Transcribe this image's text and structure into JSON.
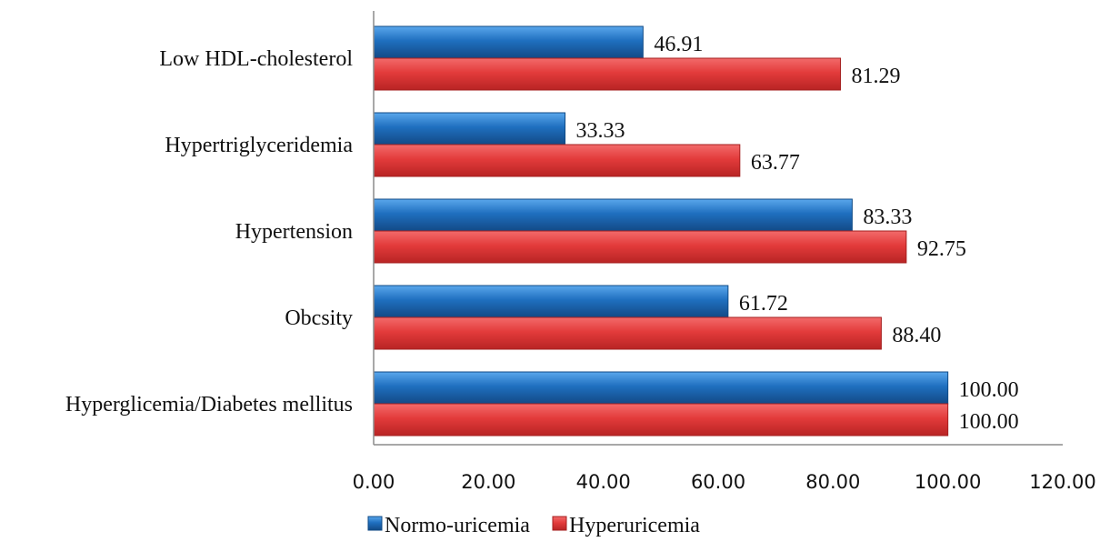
{
  "chart_data": {
    "type": "bar",
    "orientation": "horizontal",
    "categories": [
      "Low HDL-cholesterol",
      "Hypertriglyceridemia",
      "Hypertension",
      "Obcsity",
      "Hyperglicemia/Diabetes mellitus"
    ],
    "series": [
      {
        "name": "Normo-uricemia",
        "color": "#1f6fbf",
        "values": [
          46.91,
          33.33,
          83.33,
          61.72,
          100.0
        ],
        "labels": [
          "46.91",
          "33.33",
          "83.33",
          "61.72",
          "100.00"
        ]
      },
      {
        "name": "Hyperuricemia",
        "color": "#e33b3b",
        "values": [
          81.29,
          63.77,
          92.75,
          88.4,
          100.0
        ],
        "labels": [
          "81.29",
          "63.77",
          "92.75",
          "88.40",
          "100.00"
        ]
      }
    ],
    "xlim": [
      0,
      120
    ],
    "xticks": [
      "0.00",
      "20.00",
      "40.00",
      "60.00",
      "80.00",
      "100.00",
      "120.00"
    ],
    "grid": false,
    "legend_position": "bottom"
  }
}
